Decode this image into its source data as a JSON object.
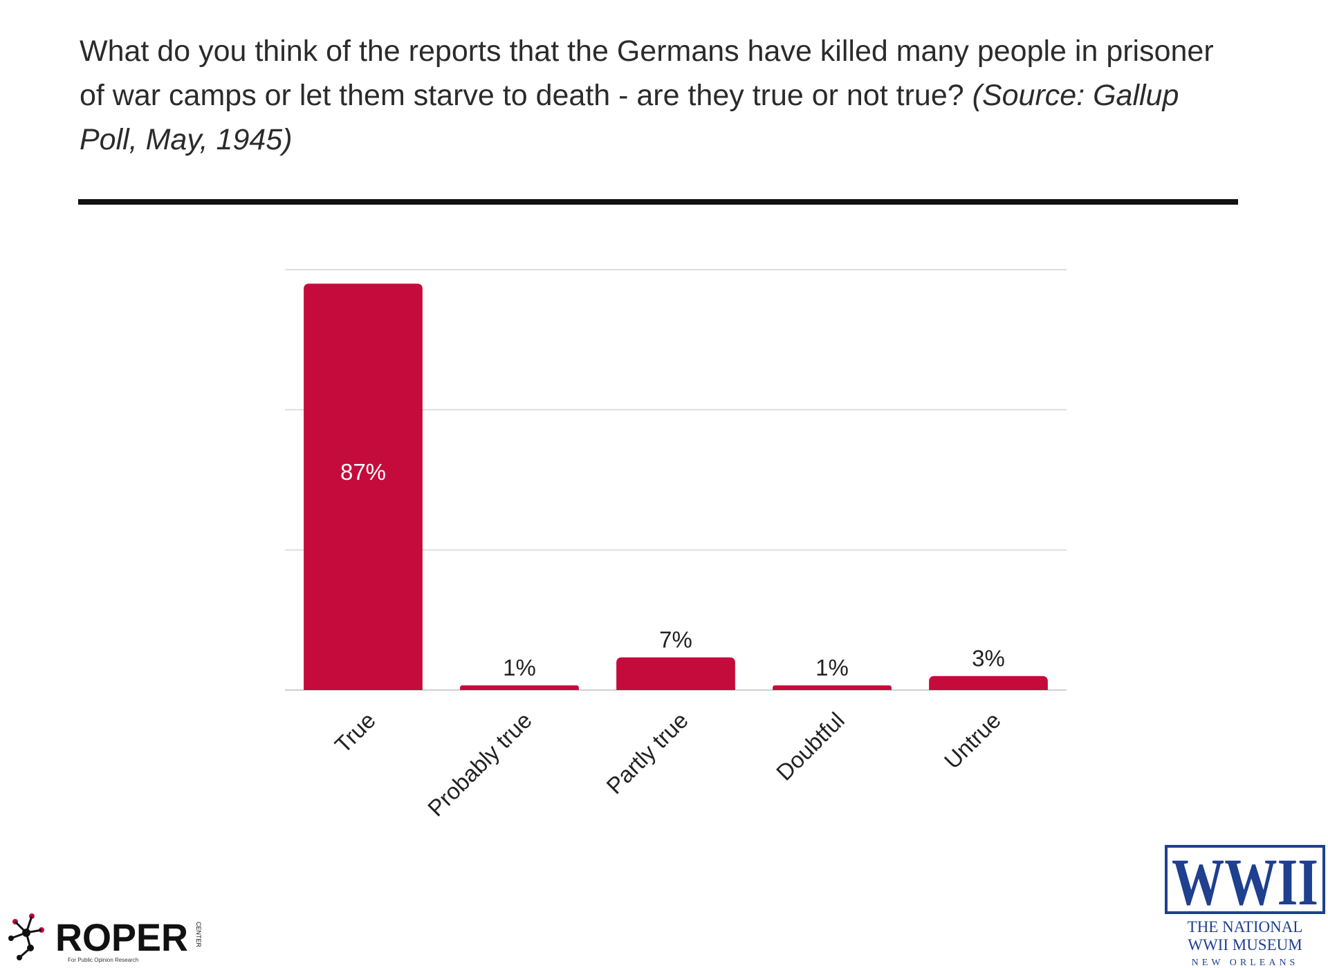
{
  "header": {
    "question": "What do you think of the reports that the Germans have killed many people in prisoner of war camps or let them starve to death - are they true or not true?",
    "source": "(Source: Gallup Poll, May, 1945)"
  },
  "chart_data": {
    "type": "bar",
    "categories": [
      "True",
      "Probably true",
      "Partly true",
      "Doubtful",
      "Untrue"
    ],
    "values": [
      87,
      1,
      7,
      1,
      3
    ],
    "value_labels": [
      "87%",
      "1%",
      "7%",
      "1%",
      "3%"
    ],
    "ylim": [
      0,
      90
    ],
    "grid": true,
    "bar_color": "#c50b3b"
  },
  "logos": {
    "roper": {
      "name": "ROPER",
      "side_text": "CENTER",
      "tagline": "For Public Opinion Research"
    },
    "museum": {
      "mark": "WWII",
      "line1": "THE NATIONAL",
      "line2": "WWII MUSEUM",
      "line3": "NEW ORLEANS"
    }
  },
  "colors": {
    "bar": "#c50b3b",
    "museum_blue": "#1f3f8f",
    "museum_red": "#c8102e"
  }
}
